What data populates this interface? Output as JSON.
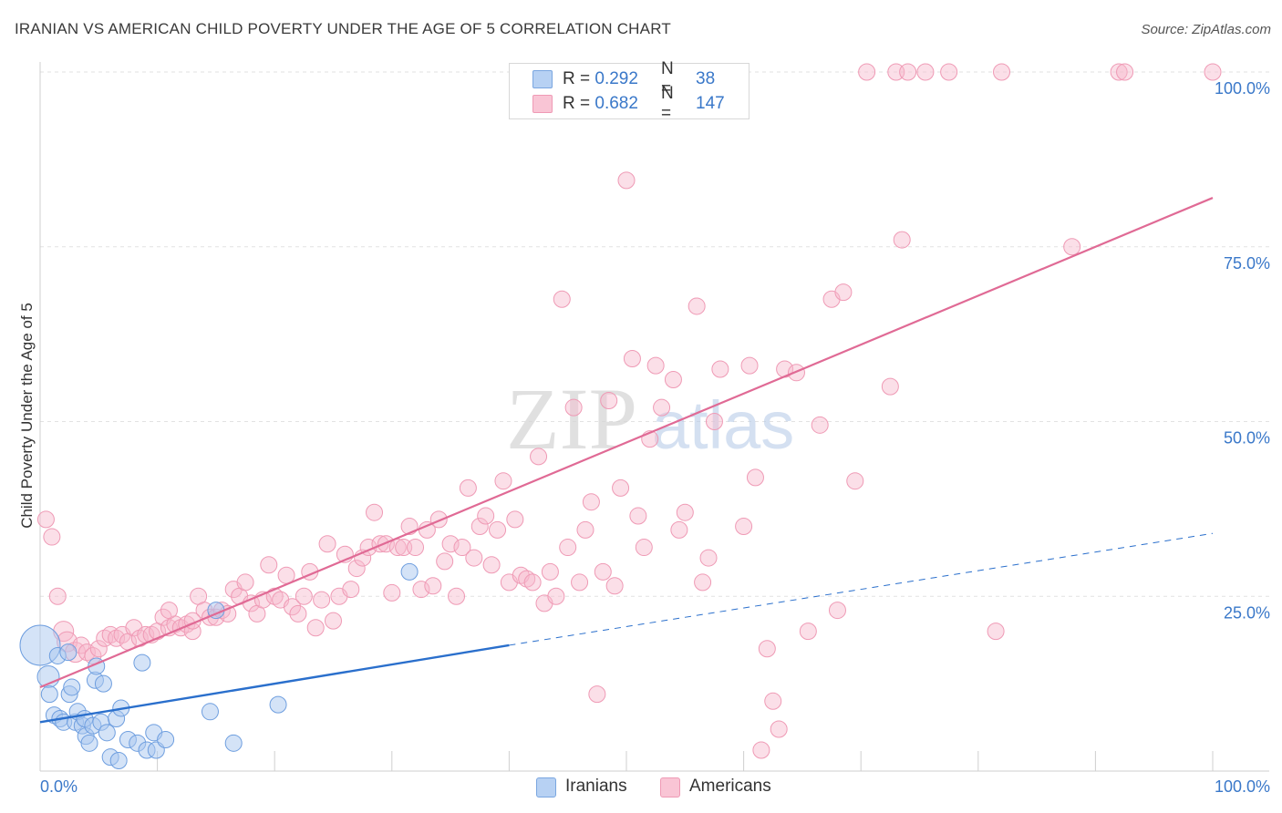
{
  "header": {
    "title": "IRANIAN VS AMERICAN CHILD POVERTY UNDER THE AGE OF 5 CORRELATION CHART",
    "source": "Source: ZipAtlas.com"
  },
  "legend": {
    "iranians": {
      "r_label": "R = ",
      "r_value": "0.292",
      "n_label": "N = ",
      "n_value": "38",
      "color": "#a9c8f0"
    },
    "americans": {
      "r_label": "R = ",
      "r_value": "0.682",
      "n_label": "N = ",
      "n_value": "147",
      "color": "#f6b8cb"
    }
  },
  "bottom_legend": {
    "iranians": "Iranians",
    "americans": "Americans"
  },
  "watermark": {
    "zip": "ZIP",
    "atlas": "atlas"
  },
  "chart_data": {
    "type": "scatter",
    "ylabel": "Child Poverty Under the Age of 5",
    "xlabel": "",
    "xlim": [
      0,
      100
    ],
    "ylim": [
      0,
      100
    ],
    "x_tick_labels": [
      "0.0%",
      "100.0%"
    ],
    "y_tick_labels": [
      "100.0%",
      "75.0%",
      "50.0%",
      "25.0%"
    ],
    "y_ticks": [
      100,
      75,
      50,
      25
    ],
    "grid": true,
    "colors": {
      "iranians": "#5b93d9",
      "americans": "#ea7fa2",
      "iranians_line": "#2a6fcc",
      "americans_line": "#e06a95"
    },
    "series": [
      {
        "name": "Iranians",
        "trend": {
          "x0": 0,
          "y0": 7,
          "x1": 40,
          "y1": 18,
          "dash_to_x": 100,
          "dash_to_y": 34
        },
        "points": [
          [
            0,
            18,
            22
          ],
          [
            0.7,
            13.5,
            12
          ],
          [
            1.2,
            8,
            9
          ],
          [
            0.8,
            11,
            9
          ],
          [
            1.5,
            16.5,
            9
          ],
          [
            1.7,
            7.5,
            9
          ],
          [
            2.0,
            7,
            9
          ],
          [
            2.5,
            11,
            9
          ],
          [
            2.7,
            12,
            9
          ],
          [
            3.0,
            7,
            9
          ],
          [
            3.2,
            8.5,
            9
          ],
          [
            3.6,
            6.5,
            9
          ],
          [
            3.8,
            7.5,
            9
          ],
          [
            3.9,
            5,
            9
          ],
          [
            4.2,
            4,
            9
          ],
          [
            4.5,
            6.5,
            9
          ],
          [
            4.7,
            13,
            9
          ],
          [
            4.8,
            15,
            9
          ],
          [
            5.2,
            7,
            9
          ],
          [
            5.4,
            12.5,
            9
          ],
          [
            5.7,
            5.5,
            9
          ],
          [
            6.0,
            2,
            9
          ],
          [
            6.5,
            7.5,
            9
          ],
          [
            6.7,
            1.5,
            9
          ],
          [
            6.9,
            9,
            9
          ],
          [
            7.5,
            4.5,
            9
          ],
          [
            8.3,
            4,
            9
          ],
          [
            8.7,
            15.5,
            9
          ],
          [
            9.1,
            3,
            9
          ],
          [
            9.7,
            5.5,
            9
          ],
          [
            9.9,
            3,
            9
          ],
          [
            10.7,
            4.5,
            9
          ],
          [
            14.5,
            8.5,
            9
          ],
          [
            15.0,
            23,
            9
          ],
          [
            16.5,
            4,
            9
          ],
          [
            20.3,
            9.5,
            9
          ],
          [
            31.5,
            28.5,
            9
          ],
          [
            2.4,
            17,
            9
          ]
        ]
      },
      {
        "name": "Americans",
        "trend": {
          "x0": 0,
          "y0": 12,
          "x1": 100,
          "y1": 82
        },
        "points": [
          [
            0.5,
            36,
            9
          ],
          [
            1.0,
            33.5,
            9
          ],
          [
            1.5,
            25,
            9
          ],
          [
            2.0,
            20,
            11
          ],
          [
            2.3,
            18.5,
            11
          ],
          [
            3.0,
            17,
            11
          ],
          [
            3.5,
            18,
            9
          ],
          [
            4.0,
            17,
            9
          ],
          [
            4.5,
            16.5,
            9
          ],
          [
            5.0,
            17.5,
            9
          ],
          [
            5.5,
            19,
            9
          ],
          [
            6.0,
            19.5,
            9
          ],
          [
            6.5,
            19,
            9
          ],
          [
            7.0,
            19.5,
            9
          ],
          [
            7.5,
            18.5,
            9
          ],
          [
            8.0,
            20.5,
            9
          ],
          [
            8.5,
            19,
            9
          ],
          [
            9.0,
            19.5,
            9
          ],
          [
            9.5,
            19.5,
            9
          ],
          [
            10.0,
            20,
            9
          ],
          [
            10.5,
            22,
            9
          ],
          [
            11.0,
            20.5,
            9
          ],
          [
            11.5,
            21,
            9
          ],
          [
            12.0,
            20.5,
            9
          ],
          [
            12.5,
            21,
            9
          ],
          [
            13.0,
            20,
            9
          ],
          [
            13.5,
            25,
            9
          ],
          [
            14.0,
            23,
            9
          ],
          [
            14.5,
            22,
            9
          ],
          [
            15.0,
            22,
            9
          ],
          [
            15.5,
            23,
            9
          ],
          [
            16.0,
            22.5,
            9
          ],
          [
            16.5,
            26,
            9
          ],
          [
            17.0,
            25,
            9
          ],
          [
            17.5,
            27,
            9
          ],
          [
            18.0,
            24,
            9
          ],
          [
            18.5,
            22.5,
            9
          ],
          [
            19.0,
            24.5,
            9
          ],
          [
            19.5,
            29.5,
            9
          ],
          [
            20.0,
            25,
            9
          ],
          [
            20.5,
            24.5,
            9
          ],
          [
            21.0,
            28,
            9
          ],
          [
            21.5,
            23.5,
            9
          ],
          [
            22.0,
            22.5,
            9
          ],
          [
            22.5,
            25,
            9
          ],
          [
            23.0,
            28.5,
            9
          ],
          [
            23.5,
            20.5,
            9
          ],
          [
            24.0,
            24.5,
            9
          ],
          [
            24.5,
            32.5,
            9
          ],
          [
            25.0,
            21.5,
            9
          ],
          [
            25.5,
            25,
            9
          ],
          [
            26.0,
            31,
            9
          ],
          [
            26.5,
            26,
            9
          ],
          [
            27.0,
            29,
            9
          ],
          [
            27.5,
            30.5,
            9
          ],
          [
            28.0,
            32,
            9
          ],
          [
            28.5,
            37,
            9
          ],
          [
            29.0,
            32.5,
            9
          ],
          [
            29.5,
            32.5,
            9
          ],
          [
            30.0,
            25.5,
            9
          ],
          [
            30.5,
            32,
            9
          ],
          [
            31.0,
            32,
            9
          ],
          [
            31.5,
            35,
            9
          ],
          [
            32.0,
            32,
            9
          ],
          [
            32.5,
            26,
            9
          ],
          [
            33.0,
            34.5,
            9
          ],
          [
            33.5,
            26.5,
            9
          ],
          [
            34.0,
            36,
            9
          ],
          [
            34.5,
            30,
            9
          ],
          [
            35.0,
            32.5,
            9
          ],
          [
            35.5,
            25,
            9
          ],
          [
            36.0,
            32,
            9
          ],
          [
            36.5,
            40.5,
            9
          ],
          [
            37.0,
            30.5,
            9
          ],
          [
            37.5,
            35,
            9
          ],
          [
            38.0,
            36.5,
            9
          ],
          [
            38.5,
            29.5,
            9
          ],
          [
            39.0,
            34.5,
            9
          ],
          [
            39.5,
            41.5,
            9
          ],
          [
            40.0,
            27,
            9
          ],
          [
            40.5,
            36,
            9
          ],
          [
            41.0,
            28,
            9
          ],
          [
            41.5,
            27.5,
            9
          ],
          [
            42.0,
            27,
            9
          ],
          [
            42.5,
            45,
            9
          ],
          [
            43.0,
            24,
            9
          ],
          [
            43.5,
            28.5,
            9
          ],
          [
            44.0,
            25,
            9
          ],
          [
            44.5,
            67.5,
            9
          ],
          [
            45.0,
            32,
            9
          ],
          [
            45.5,
            52,
            9
          ],
          [
            46.0,
            27,
            9
          ],
          [
            46.5,
            34.5,
            9
          ],
          [
            47.0,
            38.5,
            9
          ],
          [
            47.5,
            11,
            9
          ],
          [
            48.0,
            28.5,
            9
          ],
          [
            48.5,
            53,
            9
          ],
          [
            49.0,
            26.5,
            9
          ],
          [
            49.5,
            40.5,
            9
          ],
          [
            50.0,
            84.5,
            9
          ],
          [
            50.5,
            59,
            9
          ],
          [
            51.0,
            36.5,
            9
          ],
          [
            51.5,
            32,
            9
          ],
          [
            52.0,
            47.5,
            9
          ],
          [
            52.5,
            58,
            9
          ],
          [
            53.0,
            52,
            9
          ],
          [
            54.0,
            56,
            9
          ],
          [
            54.5,
            34.5,
            9
          ],
          [
            55.0,
            37,
            9
          ],
          [
            56.0,
            66.5,
            9
          ],
          [
            56.5,
            27,
            9
          ],
          [
            57.0,
            30.5,
            9
          ],
          [
            57.5,
            50,
            9
          ],
          [
            58.0,
            57.5,
            9
          ],
          [
            60.0,
            35,
            9
          ],
          [
            60.5,
            58,
            9
          ],
          [
            61.0,
            42,
            9
          ],
          [
            62.0,
            17.5,
            9
          ],
          [
            62.5,
            10,
            9
          ],
          [
            63.0,
            6,
            9
          ],
          [
            63.5,
            57.5,
            9
          ],
          [
            64.5,
            57,
            9
          ],
          [
            65.5,
            20,
            9
          ],
          [
            66.5,
            49.5,
            9
          ],
          [
            67.5,
            67.5,
            9
          ],
          [
            68.0,
            23,
            9
          ],
          [
            68.5,
            68.5,
            9
          ],
          [
            69.5,
            41.5,
            9
          ],
          [
            72.5,
            55,
            9
          ],
          [
            73.5,
            76,
            9
          ],
          [
            81.5,
            20,
            9
          ],
          [
            88.0,
            75,
            9
          ],
          [
            61.5,
            3,
            9
          ],
          [
            59.5,
            100,
            9
          ],
          [
            70.5,
            100,
            9
          ],
          [
            73.0,
            100,
            9
          ],
          [
            74.0,
            100,
            9
          ],
          [
            75.5,
            100,
            9
          ],
          [
            77.5,
            100,
            9
          ],
          [
            82.0,
            100,
            9
          ],
          [
            92.0,
            100,
            9
          ],
          [
            92.5,
            100,
            9
          ],
          [
            100,
            100,
            9
          ],
          [
            46.5,
            95.5,
            9
          ],
          [
            57.0,
            95.5,
            9
          ],
          [
            11.0,
            23,
            9
          ],
          [
            13.0,
            21.5,
            9
          ]
        ]
      }
    ]
  }
}
